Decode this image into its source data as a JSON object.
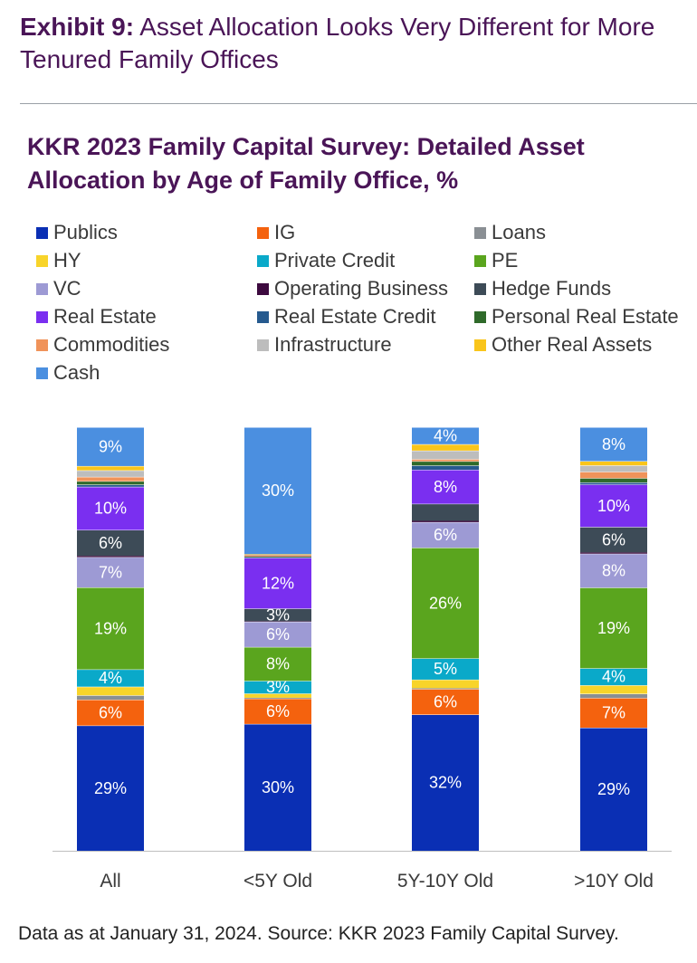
{
  "exhibit": {
    "label": "Exhibit 9:",
    "title": "Asset Allocation Looks Very Different for More Tenured Family Offices"
  },
  "chart_title": "KKR 2023 Family Capital Survey: Detailed Asset Allocation by Age of Family Office, %",
  "footnote": "Data as at January 31, 2024. Source: KKR 2023 Family Capital Survey.",
  "chart_data": {
    "type": "bar",
    "stacked": true,
    "title": "KKR 2023 Family Capital Survey: Detailed Asset Allocation by Age of Family Office, %",
    "categories": [
      "All",
      "<5Y Old",
      "5Y-10Y Old",
      ">10Y Old"
    ],
    "ylim": [
      0,
      100
    ],
    "grid": false,
    "legend_position": "top",
    "series": [
      {
        "name": "Publics",
        "color": "#0a2fb4",
        "values": [
          29,
          30,
          32,
          29
        ],
        "labels": [
          "29%",
          "30%",
          "32%",
          "29%"
        ]
      },
      {
        "name": "IG",
        "color": "#f4620e",
        "values": [
          6,
          6,
          6,
          7
        ],
        "labels": [
          "6%",
          "6%",
          "6%",
          "7%"
        ]
      },
      {
        "name": "Loans",
        "color": "#8a8f94",
        "values": [
          1,
          0.2,
          0.2,
          1
        ],
        "labels": [
          "",
          "",
          "",
          ""
        ]
      },
      {
        "name": "HY",
        "color": "#f8d42a",
        "values": [
          2,
          1,
          2,
          2
        ],
        "labels": [
          "",
          "",
          "",
          ""
        ]
      },
      {
        "name": "Private Credit",
        "color": "#0aa9c9",
        "values": [
          4,
          3,
          5,
          4
        ],
        "labels": [
          "4%",
          "3%",
          "5%",
          "4%"
        ]
      },
      {
        "name": "PE",
        "color": "#5aa51e",
        "values": [
          19,
          8,
          26,
          19
        ],
        "labels": [
          "19%",
          "8%",
          "26%",
          "19%"
        ]
      },
      {
        "name": "VC",
        "color": "#9d9ad4",
        "values": [
          7,
          6,
          6,
          8
        ],
        "labels": [
          "7%",
          "6%",
          "6%",
          "8%"
        ]
      },
      {
        "name": "Operating Business",
        "color": "#3d0a3f",
        "values": [
          0.3,
          0.1,
          0.3,
          0.3
        ],
        "labels": [
          "",
          "",
          "",
          ""
        ]
      },
      {
        "name": "Hedge Funds",
        "color": "#3d4b57",
        "values": [
          6,
          3,
          4,
          6
        ],
        "labels": [
          "6%",
          "3%",
          "",
          "6%"
        ]
      },
      {
        "name": "Real Estate",
        "color": "#7a2ff0",
        "values": [
          10,
          12,
          8,
          10
        ],
        "labels": [
          "10%",
          "12%",
          "8%",
          "10%"
        ]
      },
      {
        "name": "Real Estate Credit",
        "color": "#265a8f",
        "values": [
          0.5,
          0.2,
          1,
          0.5
        ],
        "labels": [
          "",
          "",
          "",
          ""
        ]
      },
      {
        "name": "Personal Real Estate",
        "color": "#2f6a2a",
        "values": [
          0.8,
          0.1,
          1,
          1
        ],
        "labels": [
          "",
          "",
          "",
          ""
        ]
      },
      {
        "name": "Commodities",
        "color": "#f0935a",
        "values": [
          1,
          0.3,
          0.5,
          1.5
        ],
        "labels": [
          "",
          "",
          "",
          ""
        ]
      },
      {
        "name": "Infrastructure",
        "color": "#bdbdbd",
        "values": [
          1.5,
          0.2,
          2,
          1.5
        ],
        "labels": [
          "",
          "",
          "",
          ""
        ]
      },
      {
        "name": "Other Real Assets",
        "color": "#f9c51b",
        "values": [
          1,
          0.1,
          1.5,
          1
        ],
        "labels": [
          "",
          "",
          "",
          ""
        ]
      },
      {
        "name": "Cash",
        "color": "#4b8fe0",
        "values": [
          9,
          30,
          4,
          8
        ],
        "labels": [
          "9%",
          "30%",
          "4%",
          "8%"
        ]
      }
    ]
  }
}
